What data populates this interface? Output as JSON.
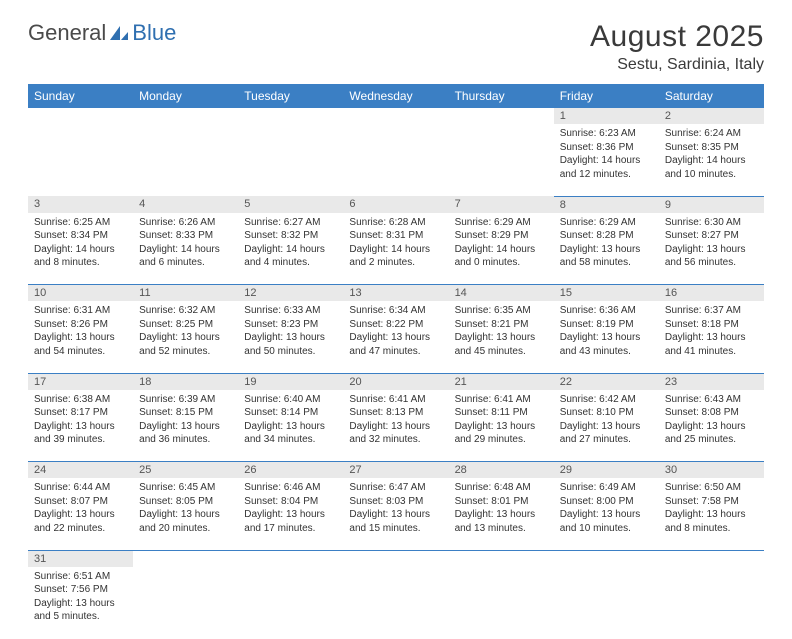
{
  "logo": {
    "part1": "General",
    "part2": "Blue"
  },
  "title": "August 2025",
  "location": "Sestu, Sardinia, Italy",
  "colors": {
    "header_bg": "#3b7fc4",
    "header_fg": "#ffffff",
    "daynum_bg": "#e9e9e9",
    "cell_border": "#3b7fc4",
    "logo_gray": "#4a4a4a",
    "logo_blue": "#2f6fb0"
  },
  "day_headers": [
    "Sunday",
    "Monday",
    "Tuesday",
    "Wednesday",
    "Thursday",
    "Friday",
    "Saturday"
  ],
  "blank_lead": 5,
  "days": [
    {
      "n": "1",
      "sunrise": "6:23 AM",
      "sunset": "8:36 PM",
      "daylight": "14 hours and 12 minutes."
    },
    {
      "n": "2",
      "sunrise": "6:24 AM",
      "sunset": "8:35 PM",
      "daylight": "14 hours and 10 minutes."
    },
    {
      "n": "3",
      "sunrise": "6:25 AM",
      "sunset": "8:34 PM",
      "daylight": "14 hours and 8 minutes."
    },
    {
      "n": "4",
      "sunrise": "6:26 AM",
      "sunset": "8:33 PM",
      "daylight": "14 hours and 6 minutes."
    },
    {
      "n": "5",
      "sunrise": "6:27 AM",
      "sunset": "8:32 PM",
      "daylight": "14 hours and 4 minutes."
    },
    {
      "n": "6",
      "sunrise": "6:28 AM",
      "sunset": "8:31 PM",
      "daylight": "14 hours and 2 minutes."
    },
    {
      "n": "7",
      "sunrise": "6:29 AM",
      "sunset": "8:29 PM",
      "daylight": "14 hours and 0 minutes."
    },
    {
      "n": "8",
      "sunrise": "6:29 AM",
      "sunset": "8:28 PM",
      "daylight": "13 hours and 58 minutes."
    },
    {
      "n": "9",
      "sunrise": "6:30 AM",
      "sunset": "8:27 PM",
      "daylight": "13 hours and 56 minutes."
    },
    {
      "n": "10",
      "sunrise": "6:31 AM",
      "sunset": "8:26 PM",
      "daylight": "13 hours and 54 minutes."
    },
    {
      "n": "11",
      "sunrise": "6:32 AM",
      "sunset": "8:25 PM",
      "daylight": "13 hours and 52 minutes."
    },
    {
      "n": "12",
      "sunrise": "6:33 AM",
      "sunset": "8:23 PM",
      "daylight": "13 hours and 50 minutes."
    },
    {
      "n": "13",
      "sunrise": "6:34 AM",
      "sunset": "8:22 PM",
      "daylight": "13 hours and 47 minutes."
    },
    {
      "n": "14",
      "sunrise": "6:35 AM",
      "sunset": "8:21 PM",
      "daylight": "13 hours and 45 minutes."
    },
    {
      "n": "15",
      "sunrise": "6:36 AM",
      "sunset": "8:19 PM",
      "daylight": "13 hours and 43 minutes."
    },
    {
      "n": "16",
      "sunrise": "6:37 AM",
      "sunset": "8:18 PM",
      "daylight": "13 hours and 41 minutes."
    },
    {
      "n": "17",
      "sunrise": "6:38 AM",
      "sunset": "8:17 PM",
      "daylight": "13 hours and 39 minutes."
    },
    {
      "n": "18",
      "sunrise": "6:39 AM",
      "sunset": "8:15 PM",
      "daylight": "13 hours and 36 minutes."
    },
    {
      "n": "19",
      "sunrise": "6:40 AM",
      "sunset": "8:14 PM",
      "daylight": "13 hours and 34 minutes."
    },
    {
      "n": "20",
      "sunrise": "6:41 AM",
      "sunset": "8:13 PM",
      "daylight": "13 hours and 32 minutes."
    },
    {
      "n": "21",
      "sunrise": "6:41 AM",
      "sunset": "8:11 PM",
      "daylight": "13 hours and 29 minutes."
    },
    {
      "n": "22",
      "sunrise": "6:42 AM",
      "sunset": "8:10 PM",
      "daylight": "13 hours and 27 minutes."
    },
    {
      "n": "23",
      "sunrise": "6:43 AM",
      "sunset": "8:08 PM",
      "daylight": "13 hours and 25 minutes."
    },
    {
      "n": "24",
      "sunrise": "6:44 AM",
      "sunset": "8:07 PM",
      "daylight": "13 hours and 22 minutes."
    },
    {
      "n": "25",
      "sunrise": "6:45 AM",
      "sunset": "8:05 PM",
      "daylight": "13 hours and 20 minutes."
    },
    {
      "n": "26",
      "sunrise": "6:46 AM",
      "sunset": "8:04 PM",
      "daylight": "13 hours and 17 minutes."
    },
    {
      "n": "27",
      "sunrise": "6:47 AM",
      "sunset": "8:03 PM",
      "daylight": "13 hours and 15 minutes."
    },
    {
      "n": "28",
      "sunrise": "6:48 AM",
      "sunset": "8:01 PM",
      "daylight": "13 hours and 13 minutes."
    },
    {
      "n": "29",
      "sunrise": "6:49 AM",
      "sunset": "8:00 PM",
      "daylight": "13 hours and 10 minutes."
    },
    {
      "n": "30",
      "sunrise": "6:50 AM",
      "sunset": "7:58 PM",
      "daylight": "13 hours and 8 minutes."
    },
    {
      "n": "31",
      "sunrise": "6:51 AM",
      "sunset": "7:56 PM",
      "daylight": "13 hours and 5 minutes."
    }
  ]
}
